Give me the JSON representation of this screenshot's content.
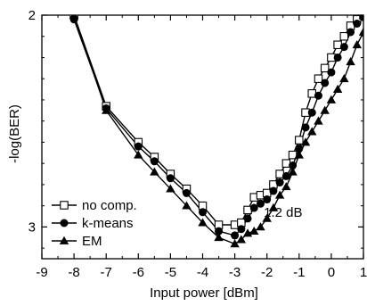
{
  "chart_data": {
    "type": "line",
    "title": "",
    "xlabel": "Input power [dBm]",
    "ylabel": "-log(BER)",
    "xlim": [
      -9,
      1
    ],
    "ylim": [
      2,
      3.15
    ],
    "y_inverted": true,
    "x_ticks": [
      -9,
      -8,
      -7,
      -6,
      -5,
      -4,
      -3,
      -2,
      -1,
      0,
      1
    ],
    "x_tick_labels": [
      "-9",
      "-8",
      "-7",
      "-6",
      "-5",
      "-4",
      "-3",
      "-2",
      "-1",
      "0",
      "1"
    ],
    "y_ticks": [
      2,
      3
    ],
    "y_tick_labels": [
      "2",
      "3"
    ],
    "grid": false,
    "legend_position": "bottom-left",
    "series": [
      {
        "name": "no comp.",
        "marker": "open-square",
        "x": [
          -8,
          -7,
          -6,
          -5.5,
          -5,
          -4.5,
          -4,
          -3.5,
          -3,
          -2.8,
          -2.6,
          -2.4,
          -2.2,
          -2.0,
          -1.8,
          -1.6,
          -1.4,
          -1.2,
          -1.0,
          -0.8,
          -0.6,
          -0.4,
          -0.2,
          0.0,
          0.2,
          0.4,
          0.6,
          0.8,
          1.0,
          1.2
        ],
        "y": [
          2.0,
          2.43,
          2.6,
          2.67,
          2.75,
          2.82,
          2.9,
          2.99,
          2.99,
          2.98,
          2.92,
          2.86,
          2.85,
          2.84,
          2.8,
          2.75,
          2.7,
          2.66,
          2.59,
          2.46,
          2.37,
          2.3,
          2.25,
          2.2,
          2.14,
          2.1,
          2.05,
          2.02,
          2.0,
          1.97
        ]
      },
      {
        "name": "k-means",
        "marker": "filled-circle",
        "x": [
          -8,
          -7,
          -6,
          -5.5,
          -5,
          -4.5,
          -4,
          -3.5,
          -3,
          -2.8,
          -2.6,
          -2.4,
          -2.2,
          -2.0,
          -1.8,
          -1.6,
          -1.4,
          -1.2,
          -1.0,
          -0.8,
          -0.6,
          -0.4,
          -0.2,
          0.0,
          0.2,
          0.4,
          0.6,
          0.8,
          1.0,
          1.2
        ],
        "y": [
          2.02,
          2.44,
          2.62,
          2.69,
          2.77,
          2.84,
          2.93,
          3.02,
          3.04,
          3.01,
          2.96,
          2.91,
          2.89,
          2.87,
          2.83,
          2.79,
          2.76,
          2.71,
          2.63,
          2.53,
          2.46,
          2.38,
          2.32,
          2.27,
          2.2,
          2.15,
          2.08,
          2.04,
          2.01,
          1.98
        ]
      },
      {
        "name": "EM",
        "marker": "filled-triangle",
        "x": [
          -8,
          -7,
          -6,
          -5.5,
          -5,
          -4.5,
          -4,
          -3.5,
          -3,
          -2.8,
          -2.6,
          -2.4,
          -2.2,
          -2.0,
          -1.8,
          -1.6,
          -1.4,
          -1.2,
          -1.0,
          -0.8,
          -0.6,
          -0.4,
          -0.2,
          0.0,
          0.2,
          0.4,
          0.6,
          0.8,
          1.0,
          1.2
        ],
        "y": [
          2.0,
          2.45,
          2.66,
          2.74,
          2.82,
          2.9,
          2.98,
          3.05,
          3.08,
          3.06,
          3.03,
          3.02,
          3.0,
          2.96,
          2.91,
          2.85,
          2.81,
          2.74,
          2.66,
          2.6,
          2.55,
          2.5,
          2.45,
          2.4,
          2.35,
          2.3,
          2.22,
          2.14,
          2.08,
          2.03
        ]
      }
    ],
    "annotations": [
      {
        "text": "1.2 dB",
        "x": -2.1,
        "y": 2.93
      }
    ]
  }
}
